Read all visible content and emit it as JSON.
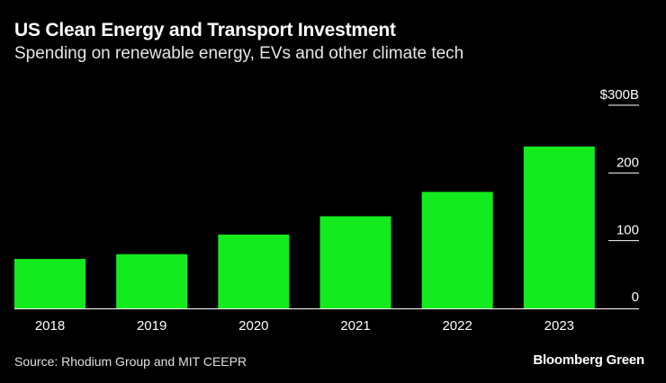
{
  "header": {
    "title": "US Clean Energy and Transport Investment",
    "subtitle": "Spending on renewable energy, EVs and other climate tech"
  },
  "footer": {
    "source": "Source: Rhodium Group and MIT CEEPR",
    "brand": "Bloomberg Green"
  },
  "colors": {
    "background": "#000000",
    "bar": "#14eb1e",
    "text": "#ffffff",
    "axis": "#ffffff"
  },
  "chart_data": {
    "type": "bar",
    "title": "US Clean Energy and Transport Investment",
    "subtitle": "Spending on renewable energy, EVs and other climate tech",
    "categories": [
      "2018",
      "2019",
      "2020",
      "2021",
      "2022",
      "2023"
    ],
    "values": [
      73,
      80,
      109,
      136,
      172,
      239
    ],
    "ylim": [
      0,
      300
    ],
    "yticks": [
      {
        "value": 0,
        "label": "0"
      },
      {
        "value": 100,
        "label": "100"
      },
      {
        "value": 200,
        "label": "200"
      },
      {
        "value": 300,
        "label": "$300B"
      }
    ],
    "xlabel": "",
    "ylabel": "",
    "grid": false,
    "axis_position": "right"
  }
}
